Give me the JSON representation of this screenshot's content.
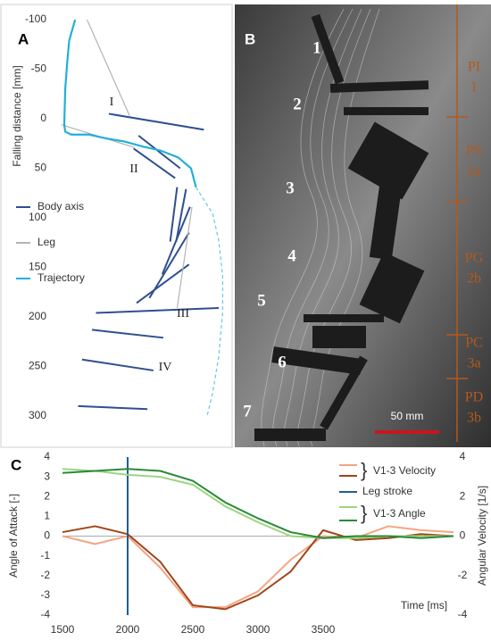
{
  "chart_data": [
    {
      "type": "segments",
      "panel": "A",
      "y_label": "Falling distance [mm]",
      "xlim": [
        0,
        165
      ],
      "ylim": [
        -100,
        300
      ],
      "y_inverted": true,
      "yticks": [
        -100,
        -50,
        0,
        50,
        100,
        150,
        200,
        250,
        300
      ],
      "series": [
        {
          "name": "Body axis",
          "color": "#2f4f8f",
          "segments": [
            [
              [
                54,
                -5
              ],
              [
                150,
                11
              ]
            ],
            [
              [
                84,
                17
              ],
              [
                126,
                50
              ]
            ],
            [
              [
                79,
                30
              ],
              [
                121,
                60
              ]
            ],
            [
              [
                123,
                69
              ],
              [
                116,
                124
              ]
            ],
            [
              [
                132,
                71
              ],
              [
                122,
                124
              ]
            ],
            [
              [
                136,
                89
              ],
              [
                108,
                157
              ]
            ],
            [
              [
                135,
                115
              ],
              [
                95,
                181
              ]
            ],
            [
              [
                135,
                147
              ],
              [
                82,
                186
              ]
            ],
            [
              [
                165,
                191
              ],
              [
                41,
                196
              ]
            ],
            [
              [
                37,
                213
              ],
              [
                109,
                221
              ]
            ],
            [
              [
                27,
                243
              ],
              [
                99,
                254
              ]
            ],
            [
              [
                23,
                290
              ],
              [
                93,
                293
              ]
            ]
          ]
        },
        {
          "name": "Leg",
          "color": "#b4b4b4",
          "segments": [
            [
              [
                32,
                -100
              ],
              [
                75,
                -3
              ]
            ],
            [
              [
                6,
                6
              ],
              [
                80,
                29
              ]
            ],
            [
              [
                138,
                89
              ],
              [
                123,
                191
              ]
            ]
          ]
        },
        {
          "name": "Trajectory",
          "color": "#22b0d8",
          "points": [
            [
              20,
              -100
            ],
            [
              14,
              -79
            ],
            [
              12,
              -57
            ],
            [
              10,
              -30
            ],
            [
              9,
              6
            ],
            [
              10,
              13
            ],
            [
              16,
              16
            ],
            [
              34,
              16
            ],
            [
              52,
              20
            ],
            [
              70,
              23
            ],
            [
              88,
              28
            ],
            [
              106,
              32
            ],
            [
              124,
              39
            ],
            [
              137,
              50
            ],
            [
              142,
              69
            ]
          ]
        },
        {
          "color": "#22b0d8",
          "dashed": true,
          "points": [
            [
              142,
              69
            ],
            [
              159,
              96
            ],
            [
              165,
              123
            ],
            [
              169,
              159
            ],
            [
              169,
              195
            ],
            [
              165,
              240
            ],
            [
              159,
              276
            ],
            [
              153,
              301
            ]
          ]
        }
      ],
      "annotations": [
        "I",
        "II",
        "III",
        "IV"
      ]
    },
    {
      "type": "line",
      "panel": "C",
      "x_label": "Time [ms]",
      "y_label": "Angle of Attack [-]",
      "y2_label": "Angular Velocity [1/s]",
      "x": [
        1500,
        1750,
        2000,
        2250,
        2500,
        2750,
        3000,
        3250,
        3500,
        3750,
        4000,
        4250,
        4500
      ],
      "xlim": [
        1500,
        4500
      ],
      "xticks": [
        1500,
        2000,
        2500,
        3000,
        3500
      ],
      "ylim": [
        -4,
        4
      ],
      "yticks": [
        -4,
        -3,
        -2,
        -1,
        0,
        1,
        2,
        3,
        4
      ],
      "y2lim": [
        -4,
        4
      ],
      "y2ticks": [
        -4,
        -2,
        0,
        2,
        4
      ],
      "series": [
        {
          "name": "V1-3 Velocity",
          "axis": "y2",
          "traces": [
            {
              "color": "#f4a582",
              "values": [
                0,
                -0.4,
                0,
                -1.6,
                -3.6,
                -3.6,
                -2.8,
                -1.2,
                0,
                -0.1,
                0.5,
                0.3,
                0.2
              ]
            },
            {
              "color": "#a0461a",
              "values": [
                0.2,
                0.5,
                0.1,
                -1.3,
                -3.5,
                -3.7,
                -3.0,
                -1.8,
                0.3,
                -0.2,
                -0.1,
                0.1,
                0
              ]
            }
          ]
        },
        {
          "name": "Leg stroke",
          "color": "#1f5f8f",
          "x": 2000
        },
        {
          "name": "V1-3 Angle",
          "traces": [
            {
              "color": "#9dd67f",
              "values": [
                3.4,
                3.3,
                3.1,
                3.0,
                2.6,
                1.5,
                0.7,
                0,
                -0.1,
                -0.1,
                0,
                0,
                0
              ]
            },
            {
              "color": "#2a8a3a",
              "values": [
                3.2,
                3.3,
                3.4,
                3.3,
                2.8,
                1.7,
                0.9,
                0.2,
                -0.1,
                0,
                0,
                -0.1,
                0
              ]
            }
          ]
        }
      ]
    }
  ],
  "panel_b": {
    "label": "B",
    "specimens": [
      "1",
      "2",
      "3",
      "4",
      "5",
      "6",
      "7"
    ],
    "phases": [
      {
        "name": "PI",
        "sub": "1"
      },
      {
        "name": "PS",
        "sub": "2a"
      },
      {
        "name": "PG",
        "sub": "2b"
      },
      {
        "name": "PC",
        "sub": "3a"
      },
      {
        "name": "PD",
        "sub": "3b"
      }
    ],
    "scale_bar": "50 mm"
  }
}
